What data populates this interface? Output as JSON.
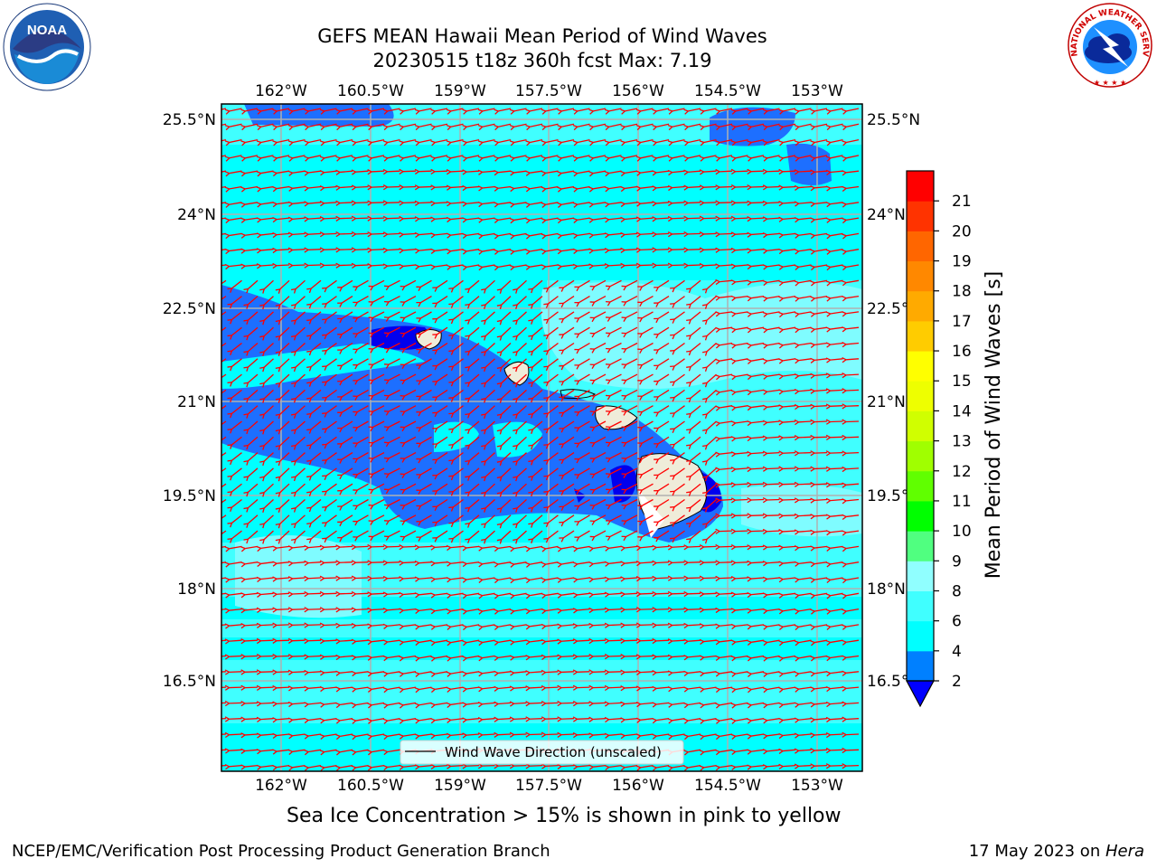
{
  "header": {
    "title_line1": "GEFS MEAN Hawaii Mean Period of Wind Waves",
    "title_line2": "20230515 t18z 360h fcst   Max: 7.19"
  },
  "map": {
    "lon_labels": [
      "162°W",
      "160.5°W",
      "159°W",
      "157.5°W",
      "156°W",
      "154.5°W",
      "153°W"
    ],
    "lat_labels": [
      "25.5°N",
      "24°N",
      "22.5°N",
      "21°N",
      "19.5°N",
      "18°N",
      "16.5°N"
    ],
    "legend_label": "Wind Wave Direction (unscaled)",
    "arrow_color": "#ff0000",
    "land_color": "#efecd9",
    "coast_color": "#000000"
  },
  "colorbar": {
    "label": "Mean Period of Wind Waves [s]",
    "ticks": [
      "2",
      "4",
      "6",
      "8",
      "9",
      "10",
      "11",
      "12",
      "13",
      "14",
      "15",
      "16",
      "17",
      "18",
      "19",
      "20",
      "21"
    ],
    "colors": [
      "#0080ff",
      "#00ffff",
      "#40ffff",
      "#90ffff",
      "#50ff80",
      "#00ff00",
      "#60ff00",
      "#a0ff00",
      "#d0ff00",
      "#eeff00",
      "#ffff00",
      "#ffcc00",
      "#ffaa00",
      "#ff8800",
      "#ff6600",
      "#ff3300",
      "#ff0000"
    ],
    "under_color": "#0000ff"
  },
  "notes": {
    "sea_ice": "Sea Ice Concentration > 15% is shown in pink to yellow"
  },
  "footer": {
    "left": "NCEP/EMC/Verification Post Processing Product Generation Branch",
    "right_date": "17 May 2023 on ",
    "right_host": "Hera"
  },
  "logos": {
    "noaa_text": "NOAA",
    "nws_text": "NATIONAL WEATHER SERVICE"
  }
}
